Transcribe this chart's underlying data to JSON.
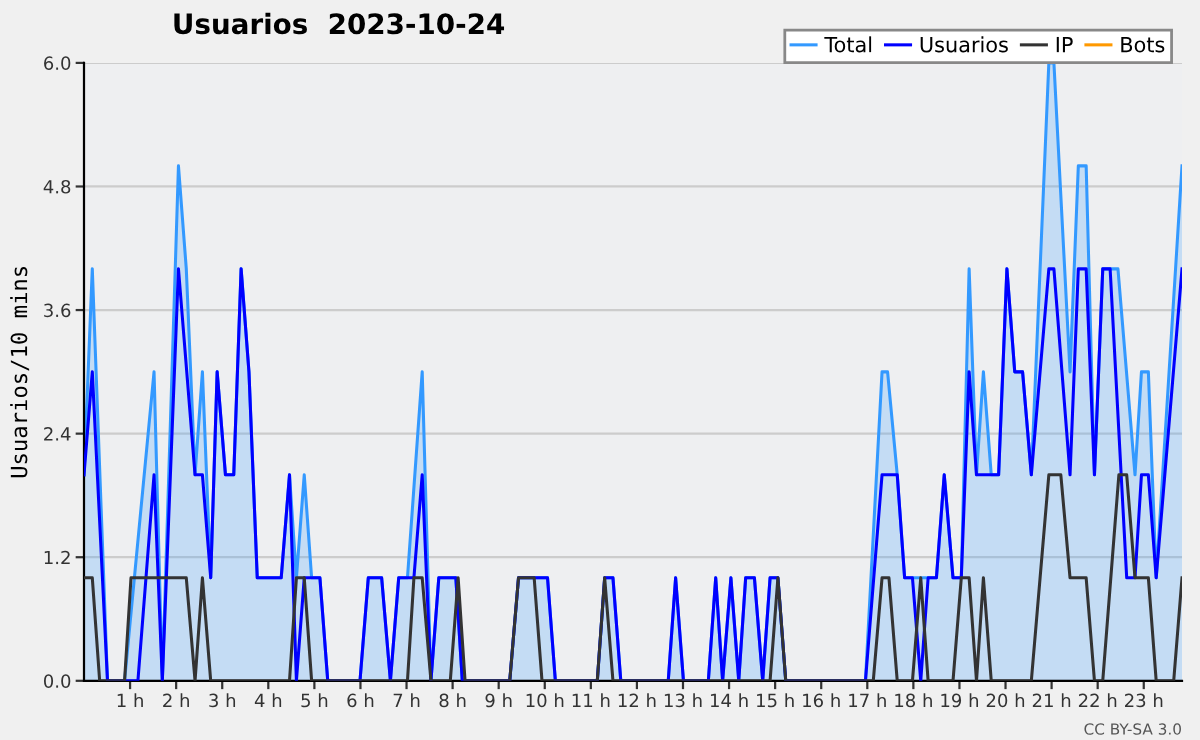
{
  "chart_data": {
    "type": "line",
    "title": "Usuarios  2023-10-24",
    "ylabel": "Usuarios/10 mins",
    "xlim": [
      0,
      23.83
    ],
    "ylim": [
      0,
      6
    ],
    "xticks": [
      {
        "value": 1,
        "label": "1 h"
      },
      {
        "value": 2,
        "label": "2 h"
      },
      {
        "value": 3,
        "label": "3 h"
      },
      {
        "value": 4,
        "label": "4 h"
      },
      {
        "value": 5,
        "label": "5 h"
      },
      {
        "value": 6,
        "label": "6 h"
      },
      {
        "value": 7,
        "label": "7 h"
      },
      {
        "value": 8,
        "label": "8 h"
      },
      {
        "value": 9,
        "label": "9 h"
      },
      {
        "value": 10,
        "label": "10 h"
      },
      {
        "value": 11,
        "label": "11 h"
      },
      {
        "value": 12,
        "label": "12 h"
      },
      {
        "value": 13,
        "label": "13 h"
      },
      {
        "value": 14,
        "label": "14 h"
      },
      {
        "value": 15,
        "label": "15 h"
      },
      {
        "value": 16,
        "label": "16 h"
      },
      {
        "value": 17,
        "label": "17 h"
      },
      {
        "value": 18,
        "label": "18 h"
      },
      {
        "value": 19,
        "label": "19 h"
      },
      {
        "value": 20,
        "label": "20 h"
      },
      {
        "value": 21,
        "label": "21 h"
      },
      {
        "value": 22,
        "label": "22 h"
      },
      {
        "value": 23,
        "label": "23 h"
      }
    ],
    "yticks": [
      {
        "value": 0,
        "label": "0.0"
      },
      {
        "value": 1.2,
        "label": "1.2"
      },
      {
        "value": 2.4,
        "label": "2.4"
      },
      {
        "value": 3.6,
        "label": "3.6"
      },
      {
        "value": 4.8,
        "label": "4.8"
      },
      {
        "value": 6,
        "label": "6.0"
      }
    ],
    "grid": "y",
    "legend": "top right",
    "marker": "none",
    "line_style": "solid",
    "annotations": [
      "CC BY-SA 3.0"
    ],
    "series": [
      {
        "name": "Total",
        "type": "area",
        "color": "#3399ff",
        "x": [
          0,
          0.18,
          0.51,
          0.88,
          1.52,
          1.7,
          2.05,
          2.22,
          2.41,
          2.57,
          2.75,
          2.89,
          3.07,
          3.25,
          3.41,
          3.58,
          3.76,
          4.28,
          4.46,
          4.61,
          4.78,
          4.94,
          5.12,
          5.29,
          5.99,
          6.17,
          6.46,
          6.65,
          6.83,
          7.02,
          7.34,
          7.53,
          7.7,
          8.07,
          8.21,
          9.24,
          9.43,
          10.06,
          10.23,
          11.14,
          11.3,
          11.48,
          11.65,
          12.68,
          12.84,
          13.01,
          13.55,
          13.71,
          13.86,
          14.04,
          14.21,
          14.36,
          14.55,
          14.73,
          14.89,
          15.06,
          15.23,
          16.96,
          17.32,
          17.44,
          17.65,
          17.81,
          18.5,
          18.67,
          18.86,
          19.04,
          19.21,
          19.37,
          19.52,
          19.69,
          19.85,
          20.03,
          20.2,
          20.37,
          20.56,
          20.94,
          21.05,
          21.4,
          21.58,
          21.75,
          21.93,
          22.11,
          22.44,
          22.81,
          22.95,
          23.1,
          23.27,
          23.83
        ],
        "values": [
          2,
          4,
          0,
          0,
          3,
          0,
          5,
          4,
          2,
          3,
          1,
          3,
          2,
          2,
          4,
          3,
          1,
          1,
          2,
          1,
          2,
          1,
          1,
          0,
          0,
          1,
          1,
          0,
          1,
          1,
          3,
          0,
          1,
          1,
          0,
          0,
          1,
          1,
          0,
          0,
          1,
          1,
          0,
          0,
          1,
          0,
          0,
          1,
          0,
          1,
          0,
          1,
          1,
          0,
          1,
          1,
          0,
          0,
          3,
          3,
          2,
          1,
          1,
          2,
          1,
          1,
          4,
          2,
          3,
          2,
          2,
          4,
          3,
          3,
          2,
          6,
          6,
          3,
          5,
          5,
          2,
          4,
          4,
          2,
          3,
          3,
          1,
          5
        ]
      },
      {
        "name": "Usuarios",
        "color": "#0000ff",
        "x": [
          0,
          0.18,
          0.51,
          1.17,
          1.52,
          1.7,
          2.05,
          2.41,
          2.57,
          2.75,
          2.89,
          3.07,
          3.25,
          3.41,
          3.58,
          3.76,
          4.28,
          4.46,
          4.61,
          4.78,
          5.12,
          5.29,
          5.99,
          6.17,
          6.46,
          6.65,
          6.83,
          7.16,
          7.34,
          7.53,
          7.7,
          8.07,
          8.21,
          9.24,
          9.43,
          10.06,
          10.23,
          11.14,
          11.3,
          11.48,
          11.65,
          12.68,
          12.84,
          13.01,
          13.55,
          13.71,
          13.86,
          14.04,
          14.21,
          14.36,
          14.55,
          14.73,
          14.89,
          15.06,
          15.23,
          16.96,
          17.32,
          17.65,
          17.81,
          17.98,
          18.16,
          18.32,
          18.5,
          18.67,
          18.86,
          19.04,
          19.21,
          19.37,
          19.85,
          20.03,
          20.2,
          20.37,
          20.56,
          20.94,
          21.05,
          21.4,
          21.58,
          21.75,
          21.93,
          22.11,
          22.27,
          22.63,
          22.81,
          22.95,
          23.1,
          23.27,
          23.83
        ],
        "values": [
          2,
          3,
          0,
          0,
          2,
          0,
          4,
          2,
          2,
          1,
          3,
          2,
          2,
          4,
          3,
          1,
          1,
          2,
          0,
          1,
          1,
          0,
          0,
          1,
          1,
          0,
          1,
          1,
          2,
          0,
          1,
          1,
          0,
          0,
          1,
          1,
          0,
          0,
          1,
          1,
          0,
          0,
          1,
          0,
          0,
          1,
          0,
          1,
          0,
          1,
          1,
          0,
          1,
          1,
          0,
          0,
          2,
          2,
          1,
          1,
          0,
          1,
          1,
          2,
          1,
          1,
          3,
          2,
          2,
          4,
          3,
          3,
          2,
          4,
          4,
          2,
          4,
          4,
          2,
          4,
          4,
          1,
          1,
          2,
          2,
          1,
          4
        ]
      },
      {
        "name": "IP",
        "color": "#333333",
        "x": [
          0,
          0.18,
          0.34,
          0.88,
          1.02,
          2.22,
          2.41,
          2.57,
          2.75,
          4.46,
          4.61,
          4.78,
          4.94,
          7.02,
          7.16,
          7.34,
          7.53,
          7.95,
          8.12,
          8.27,
          9.24,
          9.43,
          9.77,
          9.94,
          11.14,
          11.3,
          11.48,
          14.89,
          15.06,
          15.23,
          17.13,
          17.32,
          17.47,
          17.65,
          17.98,
          18.16,
          18.32,
          18.86,
          19.04,
          19.21,
          19.37,
          19.52,
          19.69,
          20.56,
          20.94,
          21.2,
          21.4,
          21.75,
          21.93,
          22.11,
          22.46,
          22.63,
          22.81,
          23.1,
          23.27,
          23.65,
          23.83
        ],
        "values": [
          1,
          1,
          0,
          0,
          1,
          1,
          0,
          1,
          0,
          0,
          1,
          1,
          0,
          0,
          1,
          1,
          0,
          0,
          1,
          0,
          0,
          1,
          1,
          0,
          0,
          1,
          0,
          0,
          1,
          0,
          0,
          1,
          1,
          0,
          0,
          1,
          0,
          0,
          1,
          1,
          0,
          1,
          0,
          0,
          2,
          2,
          1,
          1,
          0,
          0,
          2,
          2,
          1,
          1,
          0,
          0,
          1
        ]
      },
      {
        "name": "Bots",
        "color": "#ff9900"
      }
    ]
  }
}
